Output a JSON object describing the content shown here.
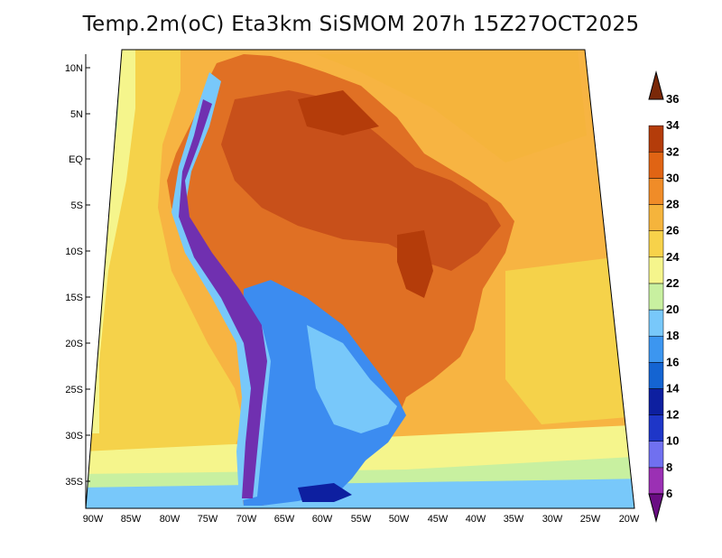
{
  "map": {
    "title": "Temp.2m(oC) Eta3km SiSMOM 207h 15Z27OCT2025",
    "latitude_ticks": [
      "10N",
      "5N",
      "EQ",
      "5S",
      "10S",
      "15S",
      "20S",
      "25S",
      "30S",
      "35S"
    ],
    "longitude_ticks": [
      "90W",
      "85W",
      "80W",
      "75W",
      "70W",
      "65W",
      "60W",
      "55W",
      "50W",
      "45W",
      "40W",
      "35W",
      "30W",
      "25W",
      "20W"
    ]
  },
  "colorbar": {
    "levels": [
      "6",
      "8",
      "10",
      "12",
      "14",
      "16",
      "18",
      "20",
      "22",
      "24",
      "26",
      "28",
      "30",
      "32",
      "34",
      "36"
    ],
    "colors": [
      "#6a0d83",
      "#9b30b4",
      "#7070f0",
      "#1e36c8",
      "#0d1fa0",
      "#1464d2",
      "#3c96f0",
      "#78c8fa",
      "#c8f0a0",
      "#f5f58c",
      "#f7d24a",
      "#f5b43c",
      "#f08c28",
      "#e06414",
      "#b43c0a",
      "#7a2808"
    ]
  },
  "colors": {
    "ocean_warm": "#f7b442",
    "ocean_mild": "#f5d24a",
    "land_hot": "#e07024",
    "land_very_hot": "#c8501a",
    "andes_cold": "#7030b0",
    "south_cool": "#3c8cf0",
    "borders": "#000000"
  }
}
